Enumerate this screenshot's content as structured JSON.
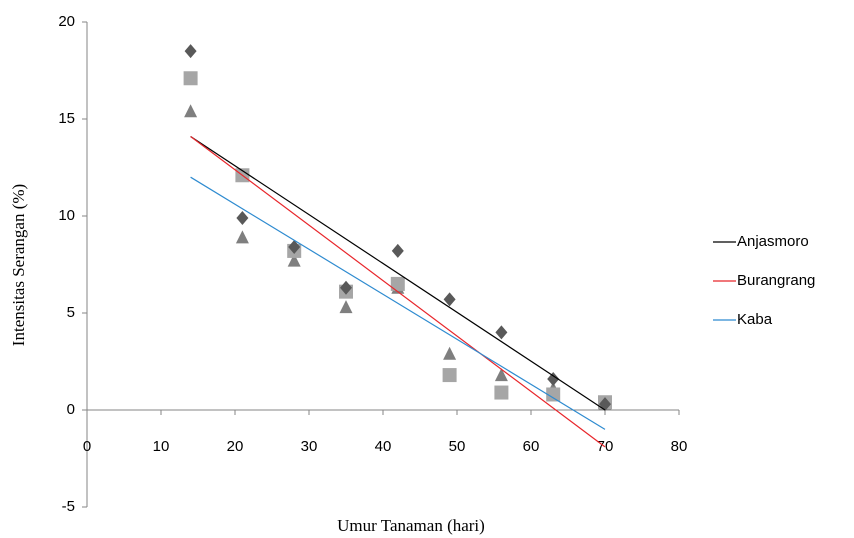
{
  "chart_data": {
    "type": "scatter",
    "x_label": "Umur Tanaman (hari)",
    "y_label": "Intensitas Serangan (%)",
    "x": [
      14,
      21,
      28,
      35,
      42,
      49,
      56,
      63,
      70
    ],
    "xlim": [
      0,
      80
    ],
    "xticks": [
      0,
      10,
      20,
      30,
      40,
      50,
      60,
      70,
      80
    ],
    "ylim": [
      -5,
      20
    ],
    "yticks": [
      -5,
      0,
      5,
      10,
      15,
      20
    ],
    "legend": "right",
    "series": [
      {
        "name": "Anjasmoro",
        "color": "#000000",
        "marker": "diamond",
        "marker_color": "#595959",
        "values": [
          18.5,
          9.9,
          8.4,
          6.3,
          8.2,
          5.7,
          4.0,
          1.6,
          0.3
        ],
        "trend": {
          "x": [
            14,
            70
          ],
          "values": [
            14.1,
            0
          ]
        }
      },
      {
        "name": "Burangrang",
        "color": "#e8262b",
        "marker": "square",
        "marker_color": "#a6a6a6",
        "values": [
          17.1,
          12.1,
          8.2,
          6.1,
          6.5,
          1.8,
          0.9,
          0.8,
          0.4
        ],
        "trend": {
          "x": [
            14,
            70
          ],
          "values": [
            14.1,
            -1.9
          ]
        }
      },
      {
        "name": "Kaba",
        "color": "#2e8bd0",
        "marker": "triangle",
        "marker_color": "#7f7f7f",
        "values": [
          15.4,
          8.9,
          7.7,
          5.3,
          6.3,
          2.9,
          1.8,
          1.1,
          0.3
        ],
        "trend": {
          "x": [
            14,
            70
          ],
          "values": [
            12.0,
            -1.0
          ]
        }
      }
    ]
  }
}
